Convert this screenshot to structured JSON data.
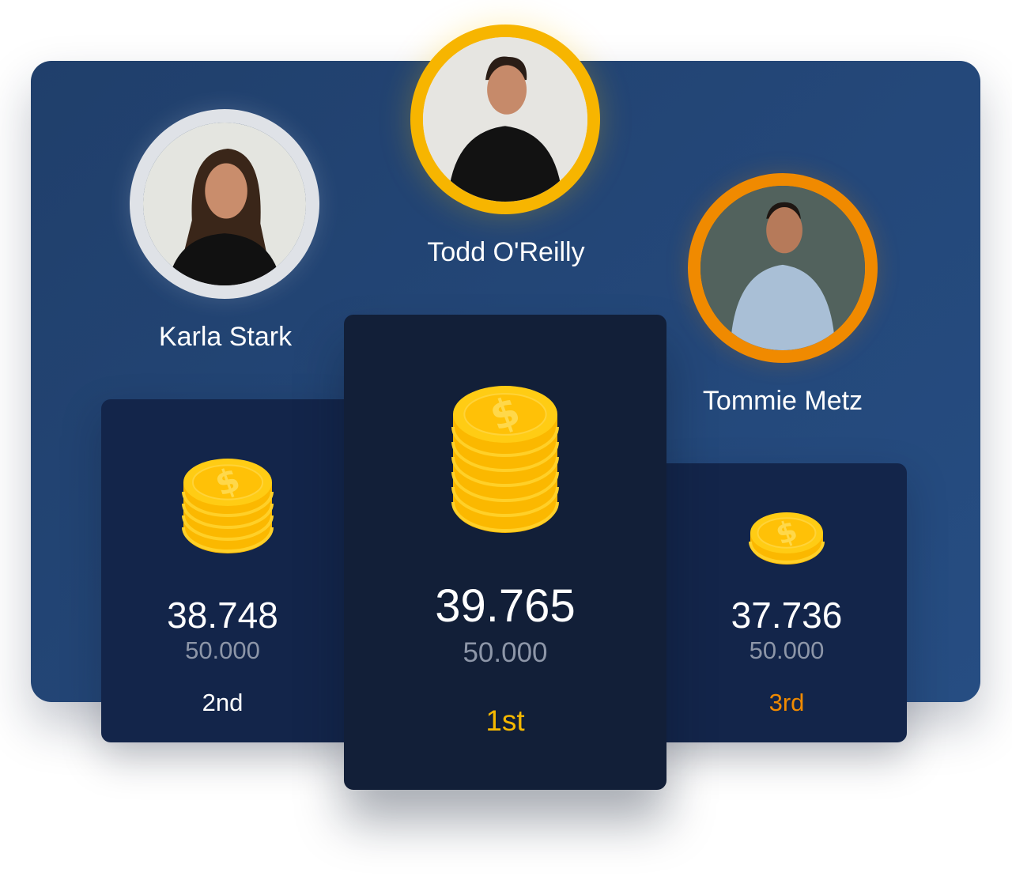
{
  "leaderboard": {
    "players": [
      {
        "rank_key": "second",
        "name": "Karla Stark",
        "score": "38.748",
        "max": "50.000",
        "rank": "2nd",
        "ring_color": "#d9dde3",
        "rank_color": "#ffffff",
        "coin_layers": 4
      },
      {
        "rank_key": "first",
        "name": "Todd O'Reilly",
        "score": "39.765",
        "max": "50.000",
        "rank": "1st",
        "ring_color": "#f7b500",
        "rank_color": "#f5b800",
        "coin_layers": 6
      },
      {
        "rank_key": "third",
        "name": "Tommie Metz",
        "score": "37.736",
        "max": "50.000",
        "rank": "3rd",
        "ring_color": "#f08a00",
        "rank_color": "#f08a00",
        "coin_layers": 1
      }
    ],
    "coin_icon": "coin-stack-dollar",
    "colors": {
      "panel": "#23446f",
      "card": "#13254a",
      "card_first": "#121f38",
      "coin": "#ffc107"
    }
  }
}
